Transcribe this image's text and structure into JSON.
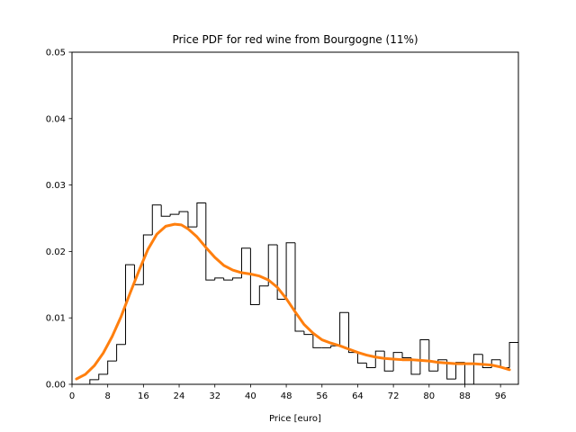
{
  "chart_data": {
    "type": "histogram",
    "title": "Price PDF for red wine from Bourgogne (11%)",
    "xlabel": "Price [euro]",
    "ylabel": "",
    "xlim": [
      0,
      100
    ],
    "ylim": [
      0,
      0.05
    ],
    "x_ticks": [
      "0",
      "8",
      "16",
      "24",
      "32",
      "40",
      "48",
      "56",
      "64",
      "72",
      "80",
      "88",
      "96"
    ],
    "y_ticks": [
      "0.00",
      "0.01",
      "0.02",
      "0.03",
      "0.04",
      "0.05"
    ],
    "grid": false,
    "legend": "none",
    "colors": {
      "histogram": "#000000",
      "kde": "#ff7f0e"
    },
    "histogram": {
      "bin_width": 2,
      "x_start": 0,
      "values": [
        0.0,
        0.0,
        0.0007,
        0.0015,
        0.0035,
        0.006,
        0.018,
        0.015,
        0.0225,
        0.027,
        0.0253,
        0.0256,
        0.026,
        0.0237,
        0.0273,
        0.0157,
        0.016,
        0.0157,
        0.016,
        0.0205,
        0.012,
        0.0148,
        0.021,
        0.0128,
        0.0213,
        0.008,
        0.0075,
        0.0055,
        0.0055,
        0.0058,
        0.0108,
        0.0048,
        0.0032,
        0.0025,
        0.005,
        0.002,
        0.0048,
        0.004,
        0.0015,
        0.0067,
        0.002,
        0.0037,
        0.0008,
        0.0033,
        0.0,
        0.0045,
        0.0025,
        0.0037,
        0.0025,
        0.0063
      ]
    },
    "kde": {
      "x": [
        1,
        3,
        5,
        7,
        9,
        11,
        13,
        15,
        17,
        19,
        21,
        23,
        24.5,
        26,
        28,
        30,
        32,
        34,
        36,
        38,
        40,
        42,
        44,
        46,
        48,
        50,
        52,
        54,
        56,
        58,
        60,
        62,
        64,
        66,
        68,
        70,
        72,
        74,
        76,
        78,
        80,
        82,
        84,
        86,
        88,
        90,
        92,
        94,
        96,
        98
      ],
      "y": [
        0.0008,
        0.0015,
        0.0028,
        0.0047,
        0.0072,
        0.0102,
        0.0137,
        0.0171,
        0.0203,
        0.0226,
        0.0238,
        0.0241,
        0.024,
        0.0234,
        0.0222,
        0.0206,
        0.0191,
        0.0179,
        0.0172,
        0.0168,
        0.0166,
        0.0163,
        0.0157,
        0.0146,
        0.0129,
        0.0109,
        0.009,
        0.0077,
        0.0067,
        0.0062,
        0.0058,
        0.0053,
        0.0048,
        0.0044,
        0.0041,
        0.0039,
        0.0038,
        0.0037,
        0.0037,
        0.0036,
        0.0035,
        0.0033,
        0.0032,
        0.0031,
        0.0031,
        0.0031,
        0.003,
        0.0029,
        0.0026,
        0.0022
      ]
    }
  }
}
